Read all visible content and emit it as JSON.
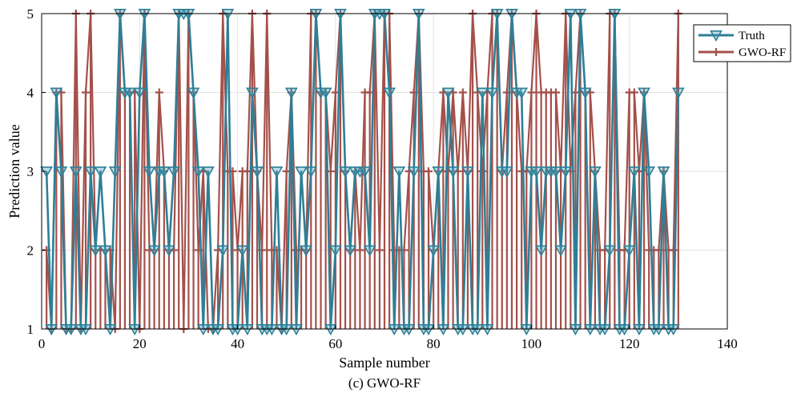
{
  "chart_data": {
    "type": "line",
    "title": "",
    "caption": "(c) GWO-RF",
    "xlabel": "Sample number",
    "ylabel": "Prediction value",
    "xlim": [
      0,
      140
    ],
    "ylim": [
      1,
      5
    ],
    "xticks": [
      0,
      20,
      40,
      60,
      80,
      100,
      120,
      140
    ],
    "yticks": [
      1,
      2,
      3,
      4,
      5
    ],
    "grid": true,
    "legend_position": "top-right",
    "x": [
      1,
      2,
      3,
      4,
      5,
      6,
      7,
      8,
      9,
      10,
      11,
      12,
      13,
      14,
      15,
      16,
      17,
      18,
      19,
      20,
      21,
      22,
      23,
      24,
      25,
      26,
      27,
      28,
      29,
      30,
      31,
      32,
      33,
      34,
      35,
      36,
      37,
      38,
      39,
      40,
      41,
      42,
      43,
      44,
      45,
      46,
      47,
      48,
      49,
      50,
      51,
      52,
      53,
      54,
      55,
      56,
      57,
      58,
      59,
      60,
      61,
      62,
      63,
      64,
      65,
      66,
      67,
      68,
      69,
      70,
      71,
      72,
      73,
      74,
      75,
      76,
      77,
      78,
      79,
      80,
      81,
      82,
      83,
      84,
      85,
      86,
      87,
      88,
      89,
      90,
      91,
      92,
      93,
      94,
      95,
      96,
      97,
      98,
      99,
      100,
      101,
      102,
      103,
      104,
      105,
      106,
      107,
      108,
      109,
      110,
      111,
      112,
      113,
      114,
      115,
      116,
      117,
      118,
      119,
      120,
      121,
      122,
      123,
      124,
      125,
      126,
      127,
      128,
      129,
      130
    ],
    "series": [
      {
        "name": "Truth",
        "color": "#2e7f96",
        "marker": "triangle-down",
        "values": [
          3,
          1,
          4,
          3,
          1,
          1,
          3,
          1,
          1,
          3,
          2,
          3,
          2,
          1,
          3,
          5,
          4,
          4,
          1,
          4,
          5,
          3,
          2,
          3,
          3,
          2,
          3,
          5,
          5,
          5,
          4,
          3,
          1,
          3,
          1,
          1,
          2,
          5,
          1,
          1,
          2,
          1,
          4,
          3,
          1,
          1,
          1,
          3,
          1,
          1,
          4,
          1,
          3,
          2,
          3,
          5,
          4,
          4,
          1,
          2,
          5,
          3,
          2,
          3,
          3,
          3,
          2,
          5,
          5,
          5,
          4,
          1,
          3,
          1,
          1,
          3,
          5,
          1,
          1,
          2,
          3,
          1,
          4,
          3,
          1,
          1,
          3,
          1,
          1,
          4,
          1,
          4,
          5,
          3,
          3,
          5,
          4,
          4,
          1,
          3,
          3,
          2,
          3,
          3,
          3,
          2,
          3,
          5,
          1,
          5,
          4,
          1,
          3,
          1,
          1,
          2,
          5,
          1,
          1,
          2,
          3,
          1,
          4,
          3,
          1,
          1,
          3,
          1,
          1,
          4
        ]
      },
      {
        "name": "GWO-RF",
        "color": "#a4504a",
        "marker": "plus",
        "values": [
          2,
          1,
          4,
          4,
          1,
          1,
          5,
          1,
          4,
          5,
          2,
          2,
          2,
          2,
          1,
          5,
          4,
          4,
          4,
          1,
          5,
          2,
          2,
          4,
          3,
          2,
          2,
          5,
          1,
          5,
          4,
          2,
          3,
          1,
          1,
          2,
          5,
          3,
          3,
          2,
          3,
          3,
          5,
          3,
          2,
          5,
          2,
          2,
          1,
          3,
          4,
          2,
          2,
          2,
          5,
          5,
          4,
          4,
          3,
          4,
          5,
          3,
          2,
          3,
          2,
          4,
          4,
          5,
          2,
          5,
          5,
          2,
          2,
          2,
          3,
          4,
          5,
          3,
          3,
          2,
          3,
          4,
          3,
          4,
          3,
          4,
          3,
          5,
          4,
          3,
          4,
          5,
          5,
          3,
          4,
          5,
          4,
          3,
          3,
          4,
          5,
          4,
          4,
          4,
          4,
          3,
          5,
          3,
          4,
          5,
          4,
          4,
          3,
          2,
          2,
          5,
          5,
          2,
          2,
          4,
          4,
          3,
          4,
          2,
          2,
          2,
          3,
          2,
          2,
          5
        ]
      }
    ]
  }
}
